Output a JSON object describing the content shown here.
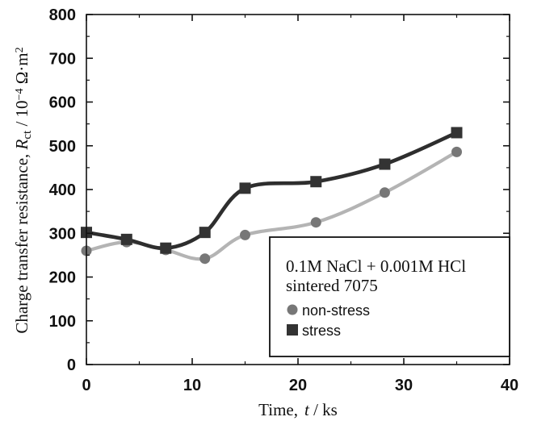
{
  "chart_data": {
    "type": "scatter",
    "xlabel": "Time,",
    "xlabel_var": "t",
    "xlabel_unit": " / ks",
    "ylabel_prefix": "Charge transfer resistance,  ",
    "ylabel_var": "R",
    "ylabel_sub": "ct",
    "ylabel_unit": " / 10",
    "ylabel_exp": "−4",
    "ylabel_unit2": " Ω·m",
    "ylabel_exp2": "2",
    "xlim": [
      0,
      40
    ],
    "ylim": [
      0,
      800
    ],
    "xticks": [
      "0",
      "10",
      "20",
      "30",
      "40"
    ],
    "yticks": [
      "0",
      "100",
      "200",
      "300",
      "400",
      "500",
      "600",
      "700",
      "800"
    ],
    "grid": false,
    "legend_position": "bottom-right",
    "legend_title_lines": [
      "0.1M NaCl + 0.001M HCl",
      "sintered 7075"
    ],
    "series": [
      {
        "name": "non-stress",
        "marker": "circle",
        "color": "#777777",
        "curve_color": "#b4b4b4",
        "x": [
          0,
          3.8,
          7.5,
          11.2,
          15,
          21.7,
          28.2,
          35
        ],
        "values": [
          260,
          280,
          262,
          242,
          296,
          325,
          393,
          486
        ]
      },
      {
        "name": "stress",
        "marker": "square",
        "color": "#333333",
        "curve_color": "#2e2e2e",
        "x": [
          0,
          3.8,
          7.5,
          11.2,
          15,
          21.7,
          28.2,
          35
        ],
        "values": [
          302,
          286,
          266,
          302,
          403,
          418,
          458,
          530
        ]
      }
    ]
  }
}
